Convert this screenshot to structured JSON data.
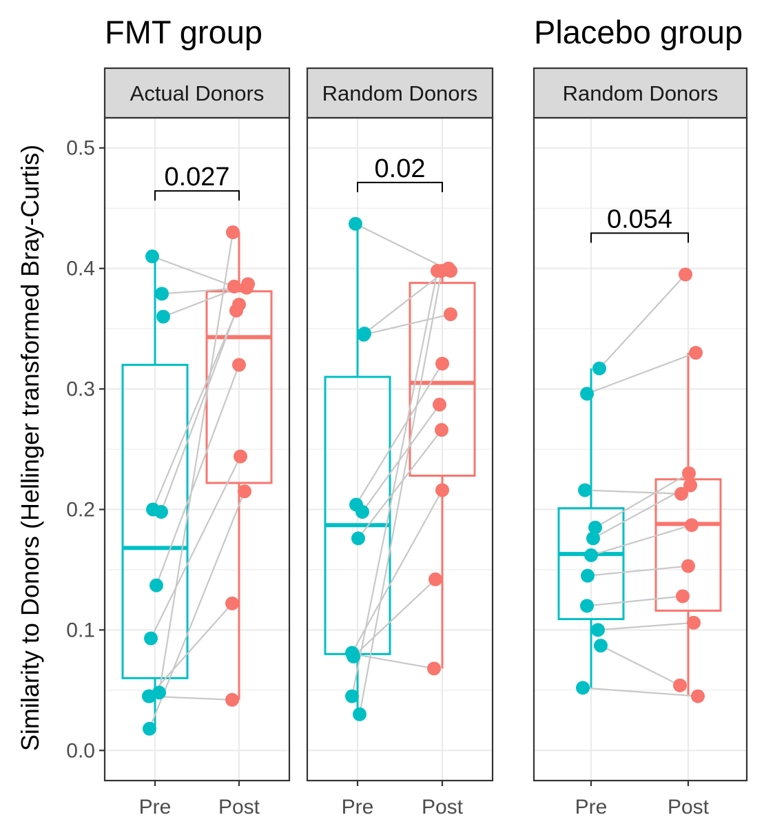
{
  "colors": {
    "pre": "#00BFC4",
    "post": "#F8766D"
  },
  "y_axis": {
    "title": "Similarity to Donors (Hellinger transformed Bray-Curtis)",
    "ticks": [
      0.0,
      0.1,
      0.2,
      0.3,
      0.4,
      0.5
    ],
    "tick_labels": [
      "0.0",
      "0.1",
      "0.2",
      "0.3",
      "0.4",
      "0.5"
    ]
  },
  "group_titles": [
    "FMT group",
    "Placebo group"
  ],
  "chart_data": {
    "type": "box",
    "x_categories": [
      "Pre",
      "Post"
    ],
    "ylim": [
      -0.025,
      0.525
    ],
    "grid": true,
    "panels": [
      {
        "group": "FMT group",
        "strip": "Actual Donors",
        "p_value": "0.027",
        "box": {
          "Pre": {
            "whisker_low": 0.018,
            "q1": 0.06,
            "median": 0.168,
            "q3": 0.32,
            "whisker_high": 0.41
          },
          "Post": {
            "whisker_low": 0.042,
            "q1": 0.222,
            "median": 0.343,
            "q3": 0.381,
            "whisker_high": 0.43
          }
        },
        "pairs": [
          [
            0.41,
            0.385
          ],
          [
            0.379,
            0.384
          ],
          [
            0.36,
            0.387
          ],
          [
            0.2,
            0.37
          ],
          [
            0.198,
            0.365
          ],
          [
            0.137,
            0.32
          ],
          [
            0.093,
            0.244
          ],
          [
            0.048,
            0.43
          ],
          [
            0.045,
            0.122
          ],
          [
            0.018,
            0.215
          ],
          [
            0.045,
            0.042
          ]
        ]
      },
      {
        "group": "FMT group",
        "strip": "Random Donors",
        "p_value": "0.02",
        "box": {
          "Pre": {
            "whisker_low": 0.03,
            "q1": 0.08,
            "median": 0.187,
            "q3": 0.31,
            "whisker_high": 0.437
          },
          "Post": {
            "whisker_low": 0.068,
            "q1": 0.228,
            "median": 0.305,
            "q3": 0.388,
            "whisker_high": 0.4
          }
        },
        "pairs": [
          [
            0.437,
            0.398
          ],
          [
            0.346,
            0.4
          ],
          [
            0.345,
            0.362
          ],
          [
            0.204,
            0.321
          ],
          [
            0.198,
            0.287
          ],
          [
            0.176,
            0.266
          ],
          [
            0.081,
            0.216
          ],
          [
            0.078,
            0.142
          ],
          [
            0.045,
            0.398
          ],
          [
            0.03,
            0.398
          ],
          [
            0.08,
            0.068
          ]
        ]
      },
      {
        "group": "Placebo group",
        "strip": "Random Donors",
        "p_value": "0.054",
        "box": {
          "Pre": {
            "whisker_low": 0.052,
            "q1": 0.109,
            "median": 0.163,
            "q3": 0.201,
            "whisker_high": 0.317
          },
          "Post": {
            "whisker_low": 0.045,
            "q1": 0.116,
            "median": 0.188,
            "q3": 0.225,
            "whisker_high": 0.33
          }
        },
        "pairs": [
          [
            0.317,
            0.395
          ],
          [
            0.296,
            0.33
          ],
          [
            0.216,
            0.213
          ],
          [
            0.185,
            0.23
          ],
          [
            0.176,
            0.22
          ],
          [
            0.162,
            0.187
          ],
          [
            0.145,
            0.153
          ],
          [
            0.12,
            0.128
          ],
          [
            0.1,
            0.106
          ],
          [
            0.087,
            0.054
          ],
          [
            0.052,
            0.045
          ]
        ]
      }
    ]
  }
}
